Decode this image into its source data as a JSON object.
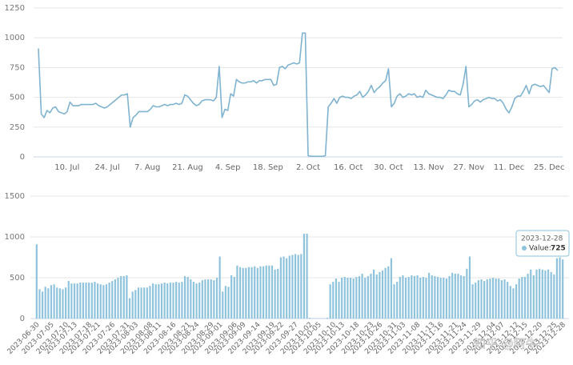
{
  "chart_data": [
    {
      "type": "line",
      "color": "#7fb3cf",
      "grid": true,
      "ylim": [
        0,
        1250
      ],
      "yticks": [
        0,
        250,
        500,
        750,
        1000,
        1250
      ],
      "categories": [
        null,
        null,
        null,
        null,
        null,
        null,
        null,
        null,
        null,
        null,
        "10. Jul",
        null,
        null,
        null,
        null,
        null,
        null,
        null,
        null,
        null,
        null,
        null,
        null,
        null,
        "24. Jul",
        null,
        null,
        null,
        null,
        null,
        null,
        null,
        null,
        null,
        null,
        null,
        null,
        null,
        "7. Aug",
        null,
        null,
        null,
        null,
        null,
        null,
        null,
        null,
        null,
        null,
        null,
        null,
        null,
        "21. Aug",
        null,
        null,
        null,
        null,
        null,
        null,
        null,
        null,
        null,
        null,
        null,
        null,
        null,
        "4. Sep",
        null,
        null,
        null,
        null,
        null,
        null,
        null,
        null,
        null,
        null,
        null,
        null,
        null,
        "18. Sep",
        null,
        null,
        null,
        null,
        null,
        null,
        null,
        null,
        null,
        null,
        null,
        null,
        null,
        "2. Oct",
        null,
        null,
        null,
        null,
        null,
        null,
        null,
        null,
        null,
        null,
        null,
        null,
        null,
        "16. Oct",
        null,
        null,
        null,
        null,
        null,
        null,
        null,
        null,
        null,
        null,
        null,
        null,
        null,
        "30. Oct",
        null,
        null,
        null,
        null,
        null,
        null,
        null,
        null,
        null,
        null,
        null,
        null,
        null,
        "13. Nov",
        null,
        null,
        null,
        null,
        null,
        null,
        null,
        null,
        null,
        null,
        null,
        null,
        null,
        "27. Nov",
        null,
        null,
        null,
        null,
        null,
        null,
        null,
        null,
        null,
        null,
        null,
        null,
        null,
        "11. Dec",
        null,
        null,
        null,
        null,
        null,
        null,
        null,
        null,
        null,
        null,
        null,
        null,
        null,
        "25. Dec",
        null,
        null,
        null
      ],
      "values": [
        910,
        360,
        330,
        390,
        370,
        410,
        420,
        380,
        370,
        360,
        380,
        460,
        430,
        430,
        430,
        440,
        440,
        440,
        440,
        440,
        450,
        430,
        420,
        410,
        420,
        440,
        460,
        480,
        500,
        520,
        520,
        530,
        250,
        330,
        350,
        380,
        380,
        380,
        380,
        400,
        430,
        420,
        420,
        430,
        440,
        430,
        440,
        440,
        450,
        440,
        450,
        520,
        510,
        480,
        450,
        430,
        440,
        470,
        480,
        480,
        480,
        470,
        500,
        760,
        330,
        400,
        390,
        530,
        510,
        650,
        630,
        620,
        620,
        630,
        630,
        640,
        620,
        640,
        640,
        650,
        650,
        650,
        600,
        610,
        750,
        760,
        740,
        770,
        780,
        790,
        780,
        790,
        1040,
        1040,
        10,
        5,
        5,
        5,
        5,
        5,
        10,
        420,
        450,
        490,
        450,
        500,
        510,
        500,
        500,
        490,
        510,
        520,
        550,
        500,
        520,
        550,
        600,
        540,
        570,
        590,
        620,
        640,
        740,
        420,
        450,
        510,
        530,
        500,
        510,
        530,
        520,
        530,
        500,
        510,
        500,
        560,
        530,
        520,
        510,
        500,
        500,
        490,
        520,
        560,
        550,
        550,
        530,
        520,
        610,
        760,
        420,
        440,
        470,
        480,
        460,
        480,
        490,
        500,
        490,
        490,
        470,
        480,
        450,
        400,
        370,
        420,
        490,
        510,
        510,
        550,
        600,
        530,
        600,
        610,
        600,
        590,
        600,
        570,
        540,
        740,
        750,
        725
      ]
    },
    {
      "type": "bar",
      "color": "#8ec3dd",
      "grid": true,
      "ylim": [
        0,
        1500
      ],
      "yticks": [
        0,
        500,
        1000,
        1500
      ],
      "categories": [
        "2023-06-30",
        null,
        null,
        null,
        null,
        "2023-07-05",
        null,
        null,
        null,
        null,
        "2023-07-10",
        null,
        null,
        "2023-07-13",
        null,
        null,
        null,
        null,
        "2023-07-18",
        null,
        null,
        "2023-07-21",
        null,
        null,
        null,
        null,
        "2023-07-26",
        null,
        null,
        null,
        null,
        "2023-07-31",
        null,
        null,
        "2023-08-03",
        null,
        null,
        null,
        null,
        "2023-08-08",
        null,
        null,
        "2023-08-11",
        null,
        null,
        null,
        null,
        "2023-08-16",
        null,
        null,
        null,
        null,
        "2023-08-21",
        null,
        null,
        "2023-08-24",
        null,
        null,
        null,
        null,
        "2023-08-29",
        null,
        null,
        "2023-09-01",
        null,
        null,
        null,
        null,
        "2023-09-06",
        null,
        null,
        "2023-09-09",
        null,
        null,
        null,
        null,
        "2023-09-14",
        null,
        null,
        null,
        null,
        "2023-09-19",
        null,
        null,
        "2023-09-22",
        null,
        null,
        null,
        null,
        "2023-09-27",
        null,
        null,
        null,
        null,
        "2023-10-02",
        null,
        null,
        "2023-10-05",
        null,
        null,
        null,
        null,
        "2023-10-10",
        null,
        null,
        "2023-10-13",
        null,
        null,
        null,
        null,
        "2023-10-18",
        null,
        null,
        null,
        null,
        "2023-10-23",
        null,
        null,
        "2023-10-26",
        null,
        null,
        null,
        null,
        "2023-10-31",
        null,
        null,
        "2023-11-03",
        null,
        null,
        null,
        null,
        "2023-11-08",
        null,
        null,
        null,
        null,
        "2023-11-13",
        null,
        null,
        "2023-11-16",
        null,
        null,
        null,
        null,
        "2023-11-21",
        null,
        null,
        "2023-11-24",
        null,
        null,
        null,
        null,
        "2023-11-29",
        null,
        null,
        null,
        null,
        "2023-12-04",
        null,
        null,
        "2023-12-07",
        null,
        null,
        null,
        null,
        "2023-12-12",
        null,
        null,
        "2023-12-15",
        null,
        null,
        null,
        null,
        "2023-12-20",
        null,
        null,
        null,
        null,
        "2023-12-25",
        null,
        null,
        "2023-12-28"
      ],
      "values": [
        910,
        360,
        330,
        390,
        370,
        410,
        420,
        380,
        370,
        360,
        380,
        460,
        430,
        430,
        430,
        440,
        440,
        440,
        440,
        440,
        450,
        430,
        420,
        410,
        420,
        440,
        460,
        480,
        500,
        520,
        520,
        530,
        250,
        330,
        350,
        380,
        380,
        380,
        380,
        400,
        430,
        420,
        420,
        430,
        440,
        430,
        440,
        440,
        450,
        440,
        450,
        520,
        510,
        480,
        450,
        430,
        440,
        470,
        480,
        480,
        480,
        470,
        500,
        760,
        330,
        400,
        390,
        530,
        510,
        650,
        630,
        620,
        620,
        630,
        630,
        640,
        620,
        640,
        640,
        650,
        650,
        650,
        600,
        610,
        750,
        760,
        740,
        770,
        780,
        790,
        780,
        790,
        1040,
        1040,
        10,
        5,
        5,
        5,
        5,
        5,
        10,
        420,
        450,
        490,
        450,
        500,
        510,
        500,
        500,
        490,
        510,
        520,
        550,
        500,
        520,
        550,
        600,
        540,
        570,
        590,
        620,
        640,
        740,
        420,
        450,
        510,
        530,
        500,
        510,
        530,
        520,
        530,
        500,
        510,
        500,
        560,
        530,
        520,
        510,
        500,
        500,
        490,
        520,
        560,
        550,
        550,
        530,
        520,
        610,
        760,
        420,
        440,
        470,
        480,
        460,
        480,
        490,
        500,
        490,
        490,
        470,
        480,
        450,
        400,
        370,
        420,
        490,
        510,
        510,
        550,
        600,
        530,
        600,
        610,
        600,
        590,
        600,
        570,
        540,
        740,
        750,
        725
      ],
      "tooltip": {
        "label": "Value:"
      }
    }
  ],
  "watermark": "知乎 @阿牛"
}
